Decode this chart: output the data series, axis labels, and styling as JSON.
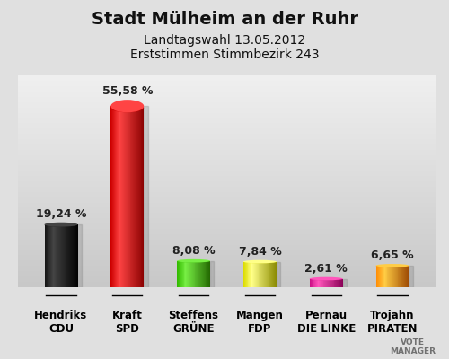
{
  "title": "Stadt Mülheim an der Ruhr",
  "subtitle1": "Landtagswahl 13.05.2012",
  "subtitle2": "Erststimmen Stimmbezirk 243",
  "categories": [
    "Hendriks\nCDU",
    "Kraft\nSPD",
    "Steffens\nGRÜNE",
    "Mangen\nFDP",
    "Pernau\nDIE LINKE",
    "Trojahn\nPIRATEN"
  ],
  "values": [
    19.24,
    55.58,
    8.08,
    7.84,
    2.61,
    6.65
  ],
  "value_labels": [
    "19,24 %",
    "55,58 %",
    "8,08 %",
    "7,84 %",
    "2,61 %",
    "6,65 %"
  ],
  "bar_colors": [
    "#111111",
    "#cc0000",
    "#33bb00",
    "#dddd00",
    "#cc1188",
    "#ff8800"
  ],
  "bar_dark_colors": [
    "#000000",
    "#880000",
    "#226600",
    "#888800",
    "#880055",
    "#994400"
  ],
  "bar_light_colors": [
    "#444444",
    "#ff4444",
    "#77ee44",
    "#ffff88",
    "#ff55bb",
    "#ffcc44"
  ],
  "background_color_top": "#f0f0f0",
  "background_color_bottom": "#c8c8c8",
  "title_fontsize": 14,
  "subtitle_fontsize": 10,
  "value_fontsize": 9,
  "label_fontsize": 8.5,
  "ylim": [
    0,
    65
  ]
}
